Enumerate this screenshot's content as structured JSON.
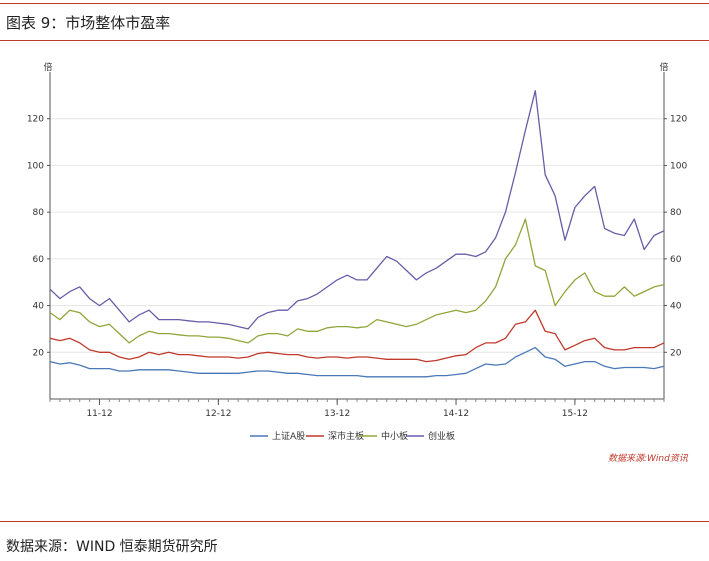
{
  "caption": "图表 9：市场整体市盈率",
  "source": "数据来源：WIND 恒泰期货研究所",
  "wind_note": "数据来源:Wind资讯",
  "chart_data": {
    "type": "line",
    "unit_left": "倍",
    "unit_right": "倍",
    "ylim": [
      0,
      140
    ],
    "yticks": [
      20,
      40,
      60,
      80,
      100,
      120
    ],
    "x_tick_labels": [
      "11-12",
      "12-12",
      "13-12",
      "14-12",
      "15-12"
    ],
    "x_tick_index": [
      5,
      17,
      29,
      41,
      53
    ],
    "grid": true,
    "legend_position": "bottom-center",
    "series": [
      {
        "name": "上证A股",
        "color": "#4a78b8",
        "values": [
          16,
          15,
          15.5,
          14.5,
          13,
          13,
          13,
          12,
          12,
          12.5,
          12.5,
          12.5,
          12.5,
          12,
          11.5,
          11,
          11,
          11,
          11,
          11,
          11.5,
          12,
          12,
          11.5,
          11,
          11,
          10.5,
          10,
          10,
          10,
          10,
          10,
          9.5,
          9.5,
          9.5,
          9.5,
          9.5,
          9.5,
          9.5,
          10,
          10,
          10.5,
          11,
          13,
          15,
          14.5,
          15,
          18,
          20,
          22,
          18,
          17,
          14,
          15,
          16,
          16,
          14,
          13,
          13.5,
          13.5,
          13.5,
          13,
          14
        ]
      },
      {
        "name": "深市主板",
        "color": "#c0392b",
        "values": [
          26,
          25,
          26,
          24,
          21,
          20,
          20,
          18,
          17,
          18,
          20,
          19,
          20,
          19,
          19,
          18.5,
          18,
          18,
          18,
          17.5,
          18,
          19.5,
          20,
          19.5,
          19,
          19,
          18,
          17.5,
          18,
          18,
          17.5,
          18,
          18,
          17.5,
          17,
          17,
          17,
          17,
          16,
          16.5,
          17.5,
          18.5,
          19,
          22,
          24,
          24,
          26,
          32,
          33,
          38,
          29,
          28,
          21,
          23,
          25,
          26,
          22,
          21,
          21,
          22,
          22,
          22,
          24
        ]
      },
      {
        "name": "中小板",
        "color": "#8fa63a",
        "values": [
          37,
          34,
          38,
          37,
          33,
          31,
          32,
          28,
          24,
          27,
          29,
          28,
          28,
          27.5,
          27,
          27,
          26.5,
          26.5,
          26,
          25,
          24,
          27,
          28,
          28,
          27,
          30,
          29,
          29,
          30.5,
          31,
          31,
          30.5,
          31,
          34,
          33,
          32,
          31,
          32,
          34,
          36,
          37,
          38,
          37,
          38,
          42,
          48,
          60,
          66,
          77,
          57,
          55,
          40,
          46,
          51,
          54,
          46,
          44,
          44,
          48,
          44,
          46,
          48,
          49
        ]
      },
      {
        "name": "创业板",
        "color": "#6a5ca8",
        "values": [
          47,
          43,
          46,
          48,
          43,
          40,
          43,
          38,
          33,
          36,
          38,
          34,
          34,
          34,
          33.5,
          33,
          33,
          32.5,
          32,
          31,
          30,
          35,
          37,
          38,
          38,
          42,
          43,
          45,
          48,
          51,
          53,
          51,
          51,
          56,
          61,
          59,
          55,
          51,
          54,
          56,
          59,
          62,
          62,
          61,
          63,
          69,
          80,
          97,
          115,
          132,
          96,
          87,
          68,
          82,
          87,
          91,
          73,
          71,
          70,
          77,
          64,
          70,
          72
        ]
      }
    ]
  }
}
